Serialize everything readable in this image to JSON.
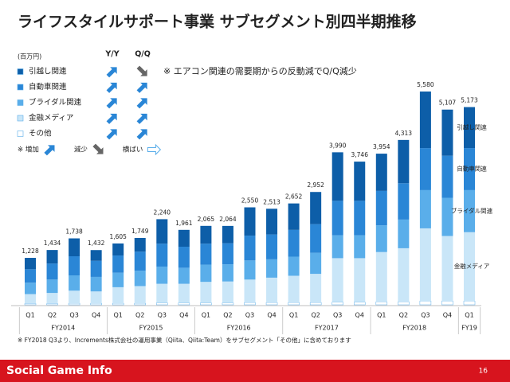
{
  "header": {
    "title": "ライフスタイルサポート事業 サブセグメント別四半期推移"
  },
  "legend_panel": {
    "unit": "(百万円)",
    "columns": [
      "Y/Y",
      "Q/Q"
    ],
    "rows": [
      {
        "yy": "up",
        "qq": "down"
      },
      {
        "yy": "up",
        "qq": "up"
      },
      {
        "yy": "up",
        "qq": "up"
      },
      {
        "yy": "up",
        "qq": "up"
      },
      {
        "yy": "up",
        "qq": "up"
      }
    ],
    "key": [
      {
        "label": "※ 増加",
        "direction": "up"
      },
      {
        "label": "減少",
        "direction": "down"
      },
      {
        "label": "横ばい",
        "direction": "flat"
      }
    ]
  },
  "note": "※ エアコン関連の需要期からの反動減でQ/Q減少",
  "chart_data": {
    "type": "stacked_bar",
    "groups": [
      {
        "label": "FY2014",
        "categories": [
          "Q1",
          "Q2",
          "Q3",
          "Q4"
        ]
      },
      {
        "label": "FY2015",
        "categories": [
          "Q1",
          "Q2",
          "Q3",
          "Q4"
        ]
      },
      {
        "label": "FY2016",
        "categories": [
          "Q1",
          "Q2",
          "Q3",
          "Q4"
        ]
      },
      {
        "label": "FY2017",
        "categories": [
          "Q1",
          "Q2",
          "Q3",
          "Q4"
        ]
      },
      {
        "label": "FY2018",
        "categories": [
          "Q1",
          "Q2",
          "Q3",
          "Q4"
        ]
      },
      {
        "label": "FY19",
        "categories": [
          "Q1"
        ]
      }
    ],
    "series": [
      {
        "name": "その他",
        "color": "#ffffff",
        "values": [
          30,
          30,
          40,
          40,
          40,
          40,
          50,
          50,
          50,
          50,
          60,
          60,
          60,
          60,
          70,
          70,
          80,
          80,
          100,
          100,
          100
        ]
      },
      {
        "name": "金融メディア",
        "color": "#c9e6f8",
        "values": [
          250,
          280,
          330,
          310,
          420,
          450,
          500,
          500,
          550,
          560,
          600,
          650,
          700,
          750,
          1150,
          1150,
          1300,
          1400,
          1900,
          1700,
          1800
        ]
      },
      {
        "name": "ブライダル関連",
        "color": "#5aaeea",
        "values": [
          300,
          350,
          400,
          380,
          380,
          400,
          450,
          420,
          450,
          450,
          500,
          480,
          500,
          550,
          600,
          600,
          700,
          750,
          1000,
          1000,
          1100
        ]
      },
      {
        "name": "自動車関連",
        "color": "#2a86d6",
        "values": [
          350,
          420,
          500,
          420,
          450,
          500,
          600,
          550,
          550,
          550,
          650,
          650,
          700,
          750,
          900,
          900,
          900,
          950,
          1100,
          1100,
          1100
        ]
      },
      {
        "name": "引越し関連",
        "color": "#0d5ea8",
        "values": [
          298,
          354,
          468,
          282,
          315,
          359,
          640,
          441,
          465,
          454,
          740,
          673,
          692,
          842,
          1270,
          1026,
          974,
          1133,
          1480,
          1207,
          1073
        ]
      }
    ],
    "totals": [
      1228,
      1434,
      1738,
      1432,
      1605,
      1749,
      2240,
      1961,
      2065,
      2064,
      2550,
      2513,
      2652,
      2952,
      3990,
      3746,
      3954,
      4313,
      5580,
      5107,
      5173
    ],
    "value_labels": [
      "1,228",
      "1,434",
      "1,738",
      "1,432",
      "1,605",
      "1,749",
      "2,240",
      "1,961",
      "2,065",
      "2,064",
      "2,550",
      "2,513",
      "2,652",
      "2,952",
      "3,990",
      "3,746",
      "3,954",
      "4,313",
      "5,580",
      "5,107",
      "5,173"
    ]
  },
  "footnote": "※ FY2018 Q3より、Increments株式会社の運用事業（Qiita、Qiita:Team）をサブセグメント「その他」に含めております",
  "footer": {
    "logo": "Social Game Info",
    "page": "16"
  }
}
